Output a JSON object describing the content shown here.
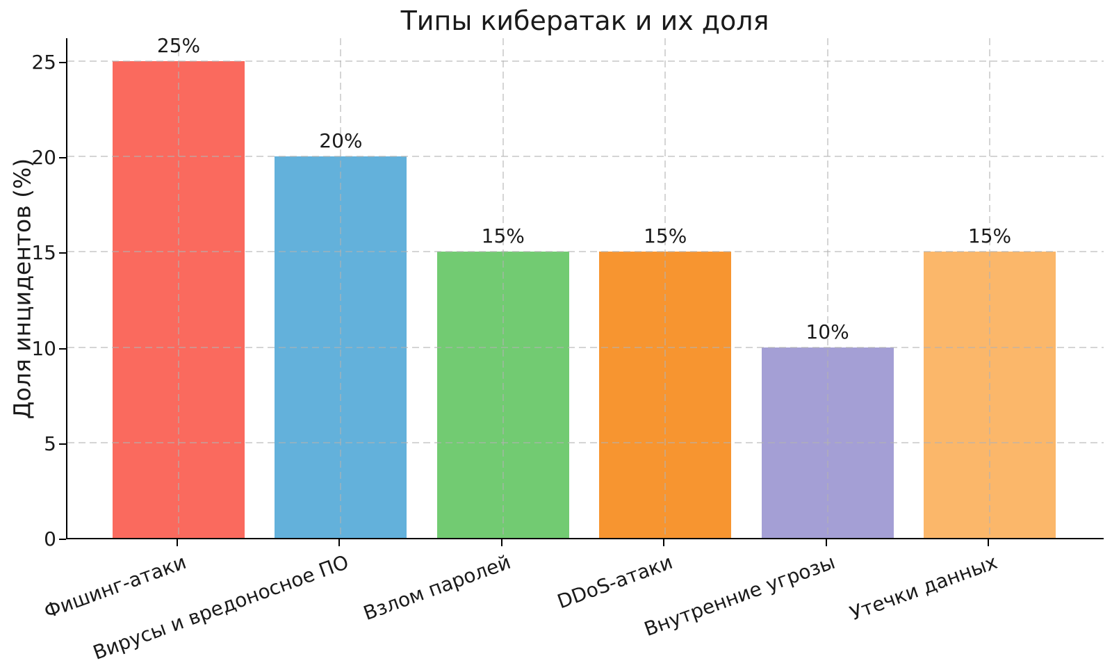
{
  "chart_data": {
    "type": "bar",
    "title": "Типы кибератак и их доля",
    "xlabel": "",
    "ylabel": "Доля инцидентов (%)",
    "categories": [
      "Фишинг-атаки",
      "Вирусы и вредоносное ПО",
      "Взлом паролей",
      "DDoS-атаки",
      "Внутренние угрозы",
      "Утечки данных"
    ],
    "values": [
      25,
      20,
      15,
      15,
      10,
      15
    ],
    "bar_labels": [
      "25%",
      "20%",
      "15%",
      "15%",
      "10%",
      "15%"
    ],
    "bar_colors": [
      "#fa6a5e",
      "#63b1db",
      "#72cb72",
      "#f79530",
      "#a49fd5",
      "#fbb76a"
    ],
    "ylim": [
      0,
      25
    ],
    "yticks": [
      0,
      5,
      10,
      15,
      20,
      25
    ],
    "grid": "dashed, horizontal and vertical",
    "legend": "none",
    "colors": {
      "background": "#ffffff",
      "text": "#1a1a1a",
      "grid": "#d6d6d6",
      "axis": "#000000"
    }
  }
}
